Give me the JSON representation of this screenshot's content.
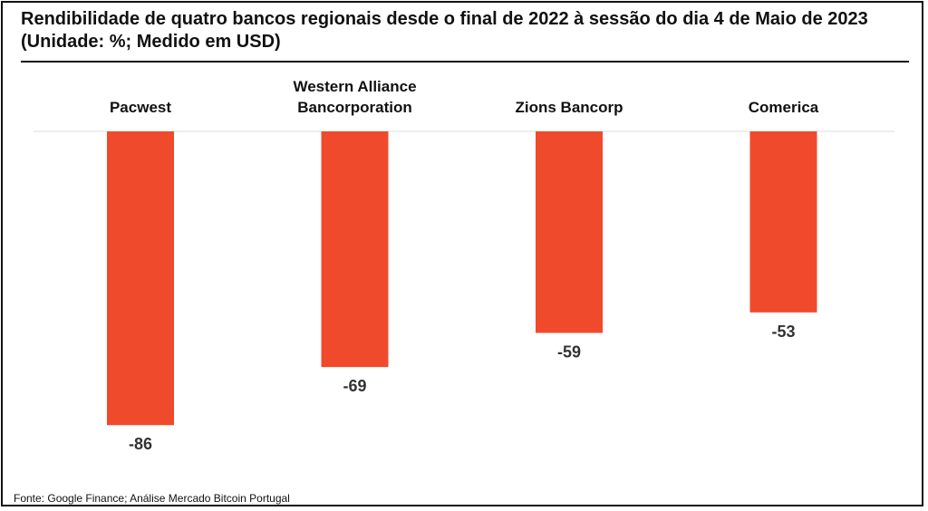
{
  "title": "Rendibilidade de quatro bancos regionais desde o final de 2022 à sessão do dia 4 de Maio de 2023 (Unidade: %; Medido em USD)",
  "source": "Fonte: Google Finance; Análise Mercado Bitcoin Portugal",
  "colors": {
    "bar": "#f04a2c",
    "baseline": "#dddddd"
  },
  "chart_data": {
    "type": "bar",
    "orientation": "vertical",
    "categories": [
      [
        "Pacwest"
      ],
      [
        "Western Alliance",
        "Bancorporation"
      ],
      [
        "Zions Bancorp"
      ],
      [
        "Comerica"
      ]
    ],
    "values": [
      -86,
      -69,
      -59,
      -53
    ],
    "value_labels": [
      "-86",
      "-69",
      "-59",
      "-53"
    ],
    "title": "Rendibilidade de quatro bancos regionais desde o final de 2022 à sessão do dia 4 de Maio de 2023 (Unidade: %; Medido em USD)",
    "xlabel": "",
    "ylabel": "",
    "ylim": [
      -90,
      0
    ],
    "grid": false,
    "legend": "none",
    "category_labels_position": "top"
  }
}
